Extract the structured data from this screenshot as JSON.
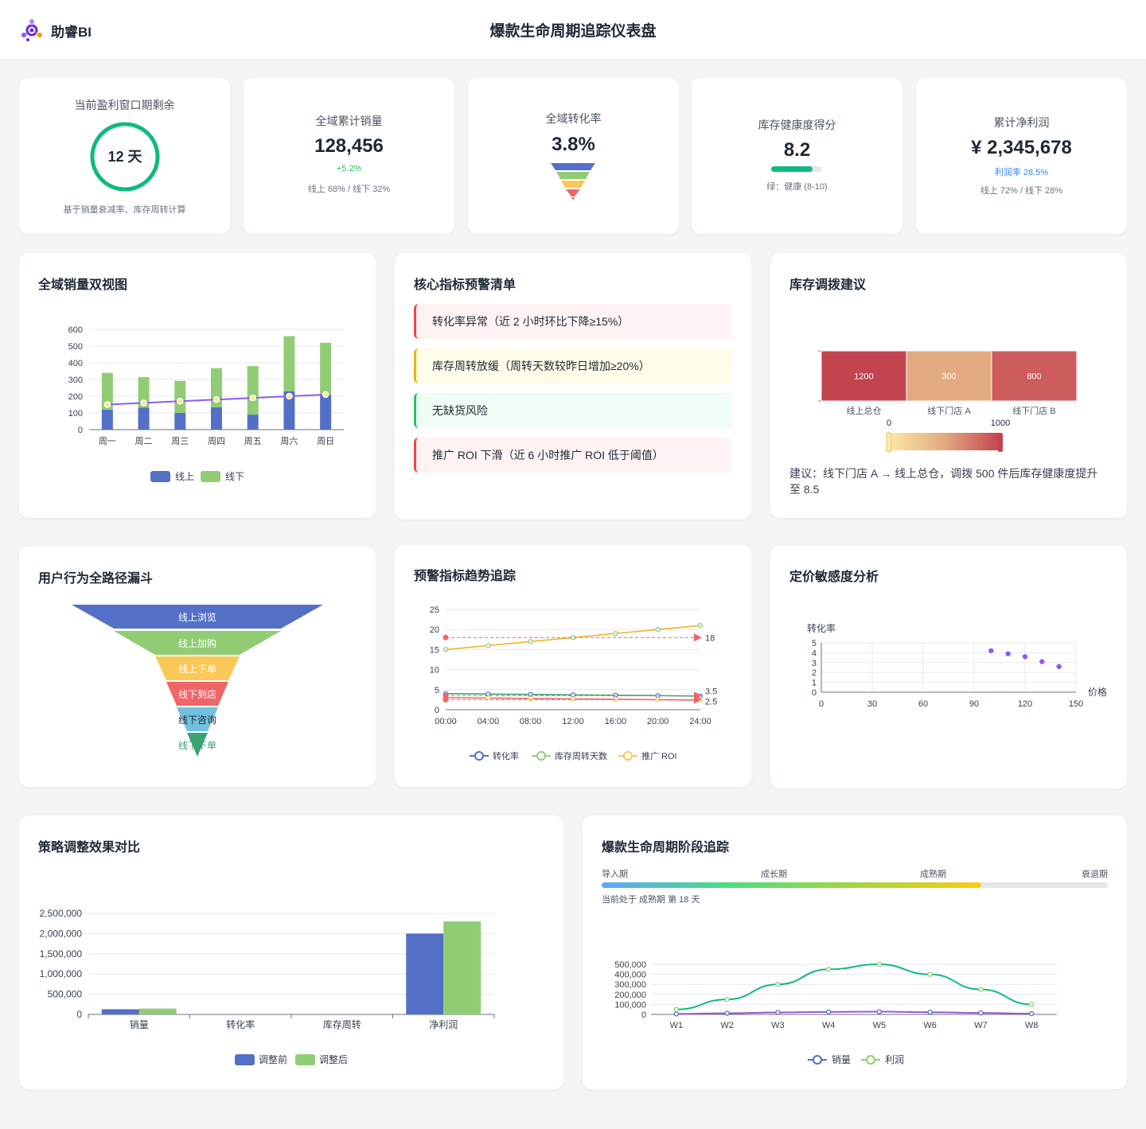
{
  "app": {
    "name": "助睿BI",
    "title": "爆款生命周期追踪仪表盘"
  },
  "kpis": {
    "window": {
      "label": "当前盈利窗口期剩余",
      "value": "12 天",
      "note": "基于销量衰减率、库存周转计算",
      "ring_color": "#10b981"
    },
    "sales": {
      "label": "全域累计销量",
      "value": "128,456",
      "change": "+5.2%",
      "split": "线上 68% / 线下 32%"
    },
    "conversion": {
      "label": "全域转化率",
      "value": "3.8%"
    },
    "inventory": {
      "label": "库存健康度得分",
      "value": "8.2",
      "level": 0.82,
      "note": "绿：健康 (8-10)"
    },
    "profit": {
      "label": "累计净利润",
      "value": "¥ 2,345,678",
      "margin": "利润率 28.5%",
      "split": "线上 72% / 线下 28%"
    }
  },
  "dual_chart": {
    "title": "全域销量双视图",
    "chart_data": {
      "type": "bar",
      "categories": [
        "周一",
        "周二",
        "周三",
        "周四",
        "周五",
        "周六",
        "周日"
      ],
      "series": [
        {
          "name": "线上",
          "values": [
            120,
            132,
            101,
            134,
            90,
            230,
            210
          ],
          "color": "#5470c6"
        },
        {
          "name": "线下",
          "values": [
            220,
            182,
            191,
            234,
            290,
            330,
            310
          ],
          "color": "#91cc75"
        }
      ],
      "line": [
        150,
        160,
        170,
        180,
        190,
        200,
        210
      ],
      "yticks": [
        "0",
        "100",
        "200",
        "300",
        "400",
        "500",
        "600"
      ],
      "ylim": [
        0,
        600
      ]
    }
  },
  "alerts": {
    "title": "核心指标预警清单",
    "items": [
      {
        "text": "转化率异常（近 2 小时环比下降≥15%）",
        "bg": "#fef2f2",
        "border": "#ef4444"
      },
      {
        "text": "库存周转放缓（周转天数较昨日增加≥20%）",
        "bg": "#fefce8",
        "border": "#eab308"
      },
      {
        "text": "无缺货风险",
        "bg": "#f0fdf4",
        "border": "#22c55e"
      },
      {
        "text": "推广 ROI 下滑（近 6 小时推广 ROI 低于阈值）",
        "bg": "#fef2f2",
        "border": "#ef4444"
      }
    ]
  },
  "transfer": {
    "title": "库存调拨建议",
    "chart_data": {
      "type": "heatmap",
      "categories": [
        "线上总仓",
        "线下门店 A",
        "线下门店 B"
      ],
      "values": [
        1200,
        300,
        800
      ],
      "scale_min": "0",
      "scale_max": "1000"
    },
    "advice": "建议：线下门店 A → 线上总仓，调拨 500 件后库存健康度提升至 8.5"
  },
  "funnel": {
    "title": "用户行为全路径漏斗",
    "stages": [
      {
        "label": "线上浏览",
        "color": "#5470c6"
      },
      {
        "label": "线上加购",
        "color": "#91cc75"
      },
      {
        "label": "线上下单",
        "color": "#fac858"
      },
      {
        "label": "线下到店",
        "color": "#ee6666"
      },
      {
        "label": "线下咨询",
        "color": "#73c0de"
      },
      {
        "label": "线下下单",
        "color": "#3ba272"
      }
    ]
  },
  "trend": {
    "title": "预警指标趋势追踪",
    "chart_data": {
      "type": "line",
      "x": [
        "00:00",
        "04:00",
        "08:00",
        "12:00",
        "16:00",
        "20:00",
        "24:00"
      ],
      "series": [
        {
          "name": "转化率",
          "values": [
            4.0,
            3.9,
            3.8,
            3.7,
            3.6,
            3.5,
            3.4
          ],
          "color": "#5470c6"
        },
        {
          "name": "库存周转天数",
          "values": [
            15,
            16,
            17,
            18,
            19,
            20,
            21
          ],
          "color": "#91cc75"
        },
        {
          "name": "推广 ROI",
          "values": [
            3.0,
            2.9,
            2.8,
            2.7,
            2.6,
            2.5,
            2.4
          ],
          "color": "#fac858"
        }
      ],
      "thresholds": [
        {
          "value": 18,
          "label": "18"
        },
        {
          "value": 3.5,
          "label": "3.5"
        },
        {
          "value": 2.5,
          "label": "2.5"
        }
      ],
      "yticks": [
        "0",
        "5",
        "10",
        "15",
        "20",
        "25"
      ],
      "ylim": [
        0,
        25
      ]
    }
  },
  "pricing": {
    "title": "定价敏感度分析",
    "chart_data": {
      "type": "scatter",
      "ylabel": "转化率",
      "xlabel": "价格",
      "points": [
        [
          100,
          4.2
        ],
        [
          110,
          3.9
        ],
        [
          120,
          3.6
        ],
        [
          130,
          3.1
        ],
        [
          140,
          2.6
        ]
      ],
      "xticks": [
        "0",
        "30",
        "60",
        "90",
        "120",
        "150"
      ],
      "yticks": [
        "0",
        "1",
        "2",
        "3",
        "4",
        "5"
      ],
      "xlim": [
        0,
        150
      ],
      "ylim": [
        0,
        5
      ]
    }
  },
  "strategy": {
    "title": "策略调整效果对比",
    "chart_data": {
      "type": "bar",
      "categories": [
        "销量",
        "转化率",
        "库存周转",
        "净利润"
      ],
      "series": [
        {
          "name": "调整前",
          "values": [
            128456,
            3.8,
            15,
            2000000
          ],
          "color": "#5470c6"
        },
        {
          "name": "调整后",
          "values": [
            145000,
            4.2,
            12,
            2300000
          ],
          "color": "#91cc75"
        }
      ],
      "yticks": [
        "0",
        "500,000",
        "1,000,000",
        "1,500,000",
        "2,000,000",
        "2,500,000"
      ],
      "ylim": [
        0,
        2500000
      ]
    }
  },
  "lifecycle": {
    "title": "爆款生命周期阶段追踪",
    "stages": [
      "导入期",
      "成长期",
      "成熟期",
      "衰退期"
    ],
    "progress": 0.75,
    "status": "当前处于 成熟期 第 18 天",
    "chart_data": {
      "type": "line",
      "x": [
        "W1",
        "W2",
        "W3",
        "W4",
        "W5",
        "W6",
        "W7",
        "W8"
      ],
      "series": [
        {
          "name": "销量",
          "values": [
            5000,
            12000,
            20000,
            25000,
            28000,
            22000,
            15000,
            8000
          ],
          "color": "#5470c6",
          "line_color": "#9b59d0"
        },
        {
          "name": "利润",
          "values": [
            50000,
            150000,
            300000,
            450000,
            500000,
            400000,
            250000,
            100000
          ],
          "color": "#91cc75",
          "line_color": "#10b981"
        }
      ],
      "yticks": [
        "0",
        "100,000",
        "200,000",
        "300,000",
        "400,000",
        "500,000"
      ],
      "ylim": [
        0,
        500000
      ]
    }
  }
}
